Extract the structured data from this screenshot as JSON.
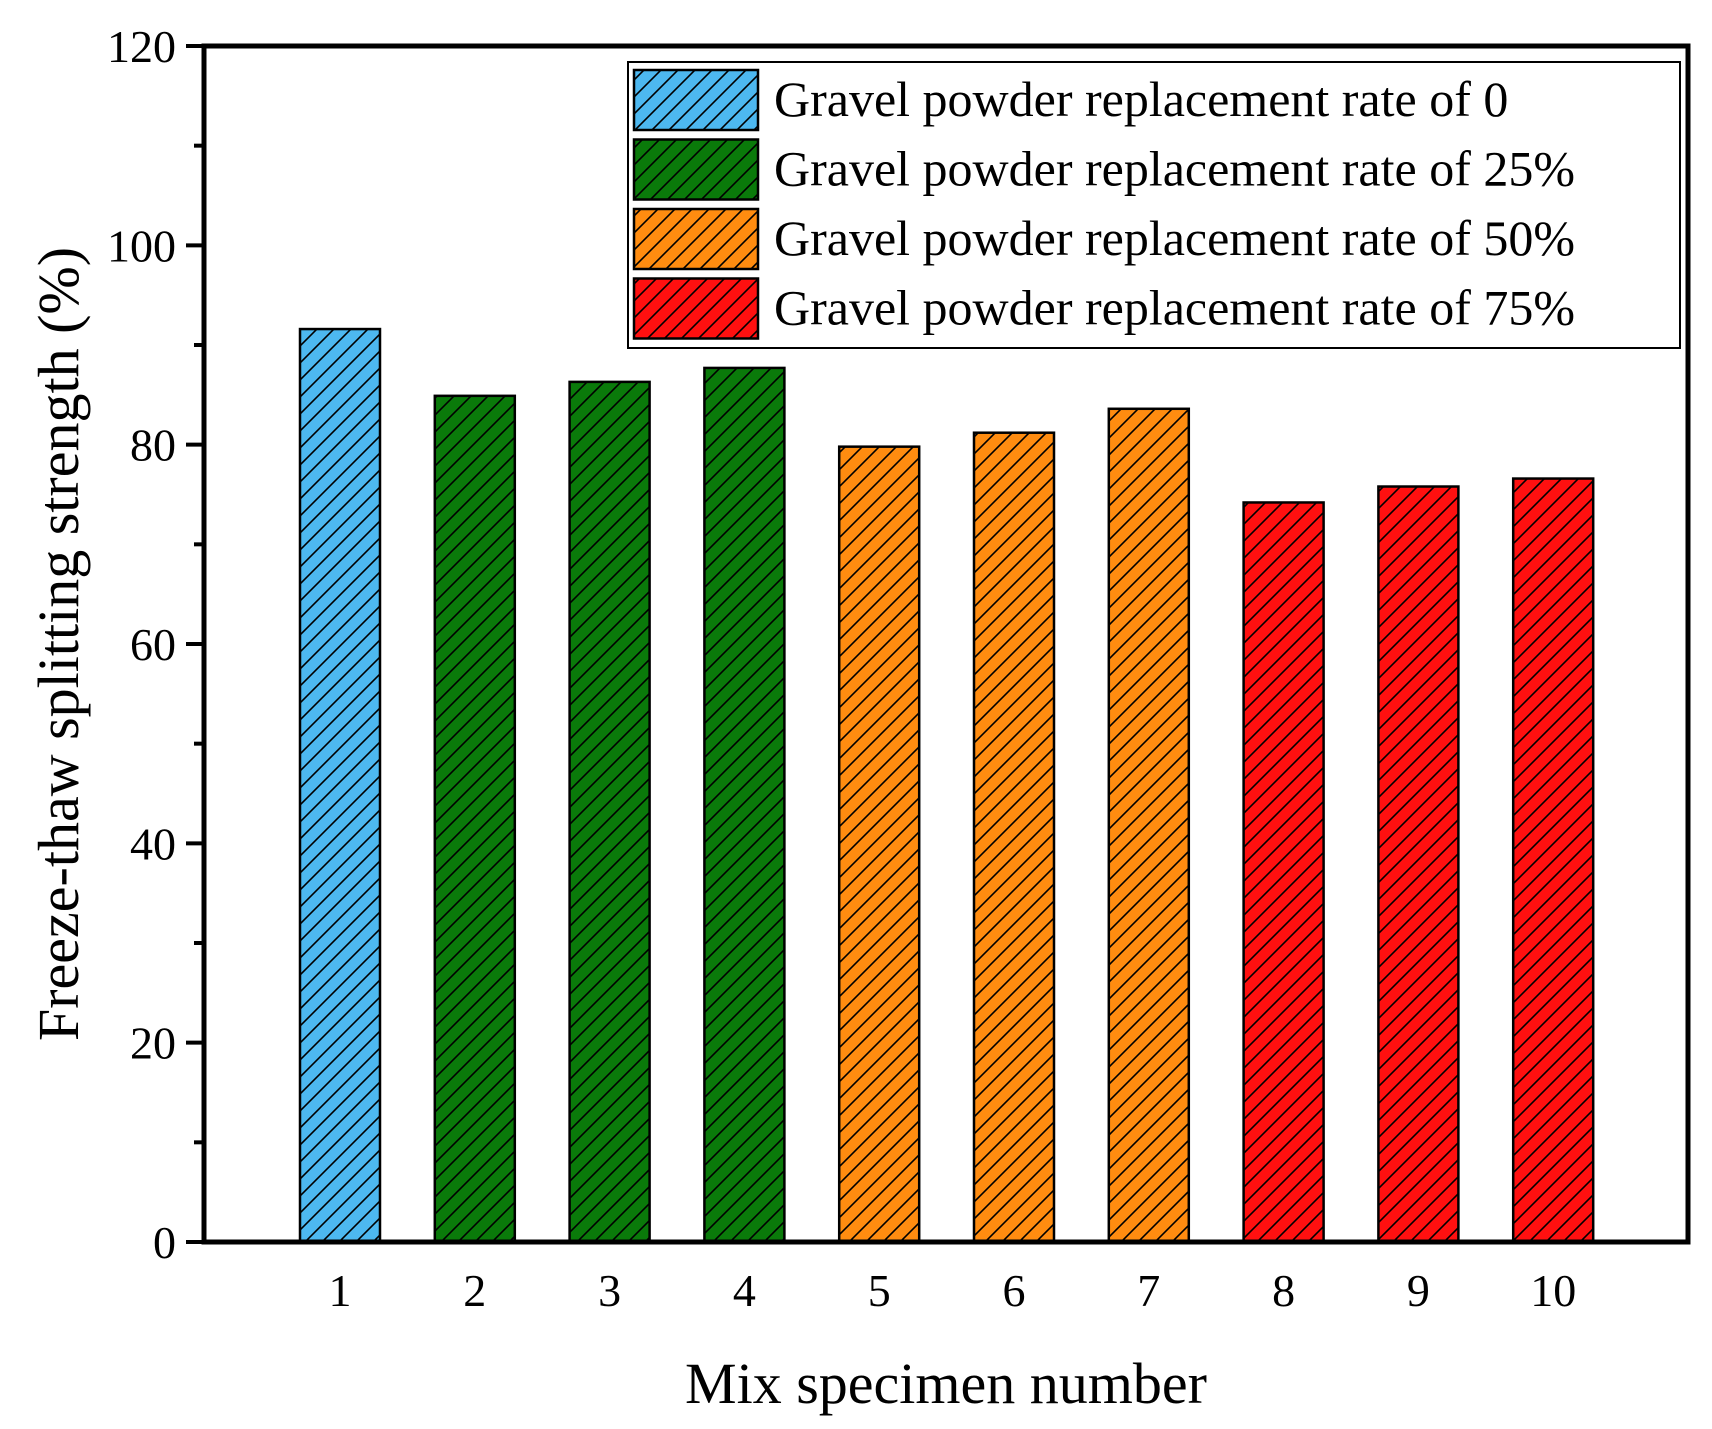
{
  "chart_data": {
    "type": "bar",
    "title": "",
    "xlabel": "Mix specimen number",
    "ylabel": "Freeze-thaw splitting strength (%)",
    "ylim": [
      0,
      120
    ],
    "yticks": [
      "0",
      "20",
      "40",
      "60",
      "80",
      "100",
      "120"
    ],
    "categories": [
      "1",
      "2",
      "3",
      "4",
      "5",
      "6",
      "7",
      "8",
      "9",
      "10"
    ],
    "values": [
      91.6,
      84.9,
      86.3,
      87.7,
      79.8,
      81.2,
      83.6,
      74.2,
      75.8,
      76.6
    ],
    "bar_series": [
      0,
      1,
      1,
      1,
      2,
      2,
      2,
      3,
      3,
      3
    ],
    "series": [
      {
        "name": "Gravel powder replacement rate of 0",
        "color": "#4db8f0"
      },
      {
        "name": "Gravel powder replacement rate of 25%",
        "color": "#0a7a0a"
      },
      {
        "name": "Gravel powder replacement rate of 50%",
        "color": "#ff8c10"
      },
      {
        "name": "Gravel powder replacement rate of 75%",
        "color": "#ff1010"
      }
    ],
    "legend_position": "top-right",
    "pattern": "diagonal-hatch",
    "grid": false
  }
}
